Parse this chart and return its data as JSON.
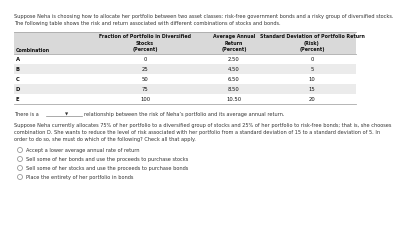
{
  "intro_line1": "Suppose Neha is choosing how to allocate her portfolio between two asset classes: risk-free government bonds and a risky group of diversified stocks.",
  "intro_line2": "The following table shows the risk and return associated with different combinations of stocks and bonds.",
  "col0_header": "Combination",
  "col1_header": "Fraction of Portfolio in Diversified\nStocks\n(Percent)",
  "col2_header": "Average Annual\nReturn\n(Percent)",
  "col3_header": "Standard Deviation of Portfolio Return\n(Risk)\n(Percent)",
  "rows": [
    [
      "A",
      "0",
      "2.50",
      "0"
    ],
    [
      "B",
      "25",
      "4.50",
      "5"
    ],
    [
      "C",
      "50",
      "6.50",
      "10"
    ],
    [
      "D",
      "75",
      "8.50",
      "15"
    ],
    [
      "E",
      "100",
      "10.50",
      "20"
    ]
  ],
  "row_colors": [
    "#ffffff",
    "#ebebeb"
  ],
  "header_color": "#d9d9d9",
  "border_color": "#aaaaaa",
  "rel_prefix": "There is a",
  "rel_suffix": "relationship between the risk of Neha’s portfolio and its average annual return.",
  "para_text": "Suppose Neha currently allocates 75% of her portfolio to a diversified group of stocks and 25% of her portfolio to risk-free bonds; that is, she chooses\ncombination D. She wants to reduce the level of risk associated with her portfolio from a standard deviation of 15 to a standard deviation of 5. In\norder to do so, she must do which of the following? Check all that apply.",
  "options": [
    "Accept a lower average annual rate of return",
    "Sell some of her bonds and use the proceeds to purchase stocks",
    "Sell some of her stocks and use the proceeds to purchase bonds",
    "Place the entirety of her portfolio in bonds"
  ],
  "text_color": "#333333",
  "text_color_dark": "#111111",
  "font_size_intro": 3.6,
  "font_size_header": 3.4,
  "font_size_data": 3.8,
  "font_size_body": 3.6,
  "font_size_option": 3.6
}
